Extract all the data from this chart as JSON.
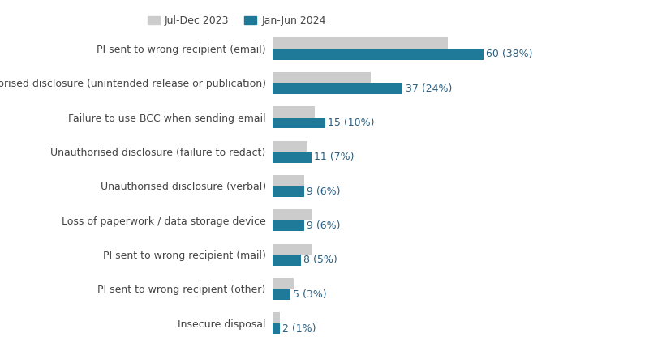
{
  "categories": [
    "PI sent to wrong recipient (email)",
    "Unauthorised disclosure (unintended release or publication)",
    "Failure to use BCC when sending email",
    "Unauthorised disclosure (failure to redact)",
    "Unauthorised disclosure (verbal)",
    "Loss of paperwork / data storage device",
    "PI sent to wrong recipient (mail)",
    "PI sent to wrong recipient (other)",
    "Insecure disposal"
  ],
  "values_2024": [
    60,
    37,
    15,
    11,
    9,
    9,
    8,
    5,
    2
  ],
  "values_2023": [
    50,
    28,
    12,
    10,
    9,
    11,
    11,
    6,
    2
  ],
  "labels_2024": [
    "60 (38%)",
    "37 (24%)",
    "15 (10%)",
    "11 (7%)",
    "9 (6%)",
    "9 (6%)",
    "8 (5%)",
    "5 (3%)",
    "2 (1%)"
  ],
  "color_2024": "#1f7a9a",
  "color_2023": "#cccccc",
  "legend_2023": "Jul-Dec 2023",
  "legend_2024": "Jan-Jun 2024",
  "background_color": "#ffffff",
  "label_fontsize": 9,
  "tick_fontsize": 9,
  "bar_height": 0.32,
  "label_color": "#2a5f7f",
  "xlim": 85
}
